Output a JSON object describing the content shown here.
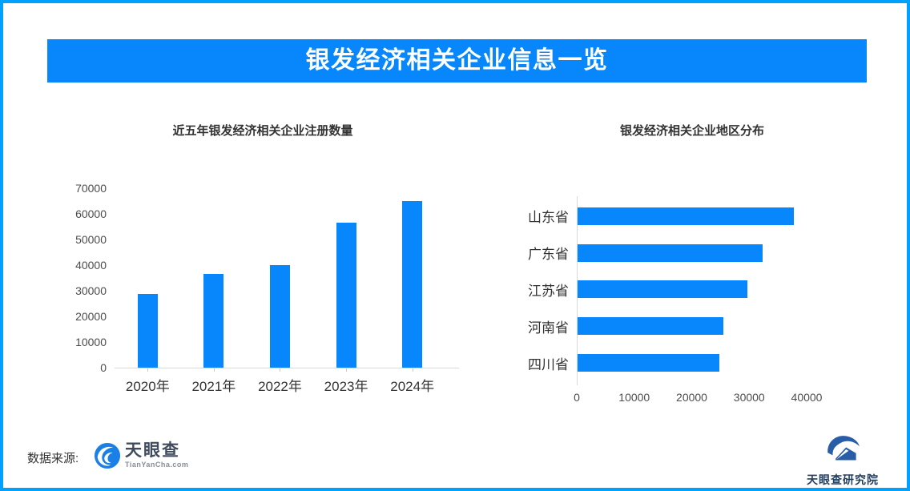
{
  "header": {
    "title": "银发经济相关企业信息一览"
  },
  "chart_data": [
    {
      "type": "bar",
      "orientation": "vertical",
      "title": "近五年银发经济相关企业注册数量",
      "categories": [
        "2020年",
        "2021年",
        "2022年",
        "2023年",
        "2024年"
      ],
      "values": [
        28800,
        36500,
        40000,
        56500,
        65000
      ],
      "xlabel": "",
      "ylabel": "",
      "ylim": [
        0,
        70000
      ],
      "yticks": [
        0,
        10000,
        20000,
        30000,
        40000,
        50000,
        60000,
        70000
      ],
      "grid": false,
      "legend": "none",
      "bar_color": "#0787fb"
    },
    {
      "type": "bar",
      "orientation": "horizontal",
      "title": "银发经济相关企业地区分布",
      "categories": [
        "山东省",
        "广东省",
        "江苏省",
        "河南省",
        "四川省"
      ],
      "values": [
        37600,
        32200,
        29500,
        25400,
        24700
      ],
      "xlabel": "",
      "ylabel": "",
      "xlim": [
        0,
        40000
      ],
      "xticks": [
        0,
        10000,
        20000,
        30000,
        40000
      ],
      "grid": false,
      "legend": "none",
      "bar_color": "#0787fb"
    }
  ],
  "footer": {
    "source_label": "数据来源:",
    "tianyancha": {
      "brand": "天眼查",
      "domain": "TianYanCha.com"
    },
    "research_institute": "天眼查研究院"
  },
  "colors": {
    "page_border": "#00a1fc",
    "banner_bg": "#0787fb",
    "banner_text": "#ffffff",
    "bar": "#0787fb",
    "axis_line": "#d9d9d9",
    "tick_text": "#4d4d4d",
    "title_text": "#333333",
    "tyc_icon_blue": "#1b80e6",
    "research_icon_blue": "#2a5da8"
  }
}
